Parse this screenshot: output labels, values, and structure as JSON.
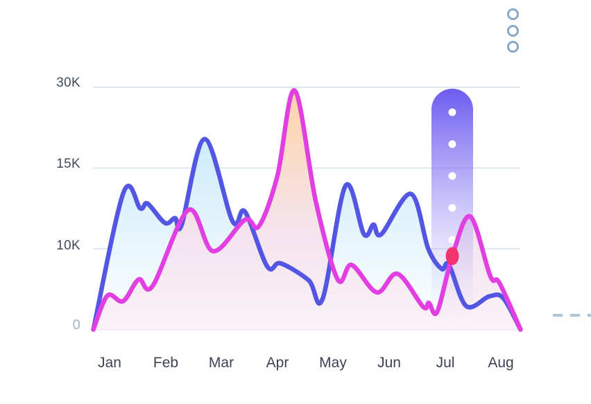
{
  "menu": {
    "icon": "kebab-vertical-rings-icon",
    "dot_count": 3,
    "ring_color": "#8ba8c6"
  },
  "chart_data": {
    "type": "area",
    "title": "",
    "unit": "K",
    "categories": [
      "Jan",
      "Feb",
      "Mar",
      "Apr",
      "May",
      "Jun",
      "Jul",
      "Aug"
    ],
    "y_ticks": [
      {
        "label": "30K",
        "value": 30
      },
      {
        "label": "15K",
        "value": 15
      },
      {
        "label": "10K",
        "value": 10
      },
      {
        "label": "0",
        "value": 0
      }
    ],
    "y_axis_note": "non-linear axis: ticks 0, 10K, 15K, 30K are evenly spaced",
    "grid": true,
    "legend": "none",
    "series": [
      {
        "name": "blue",
        "color": "#5356e2",
        "points": [
          [
            -0.29,
            0
          ],
          [
            0.25,
            13.5
          ],
          [
            0.55,
            12.5
          ],
          [
            0.68,
            12.8
          ],
          [
            0.99,
            11.6
          ],
          [
            1.17,
            11.9
          ],
          [
            1.29,
            11.5
          ],
          [
            1.7,
            20.4
          ],
          [
            2.2,
            11.7
          ],
          [
            2.42,
            12.3
          ],
          [
            2.82,
            7.8
          ],
          [
            3.06,
            8.2
          ],
          [
            3.56,
            6.1
          ],
          [
            3.81,
            3.8
          ],
          [
            4.22,
            13.9
          ],
          [
            4.55,
            10.9
          ],
          [
            4.72,
            11.5
          ],
          [
            4.86,
            10.9
          ],
          [
            5.39,
            13.4
          ],
          [
            5.7,
            10.0
          ],
          [
            5.94,
            7.5
          ],
          [
            6.07,
            8.0
          ],
          [
            6.38,
            2.9
          ],
          [
            6.79,
            4.1
          ],
          [
            7.04,
            3.9
          ],
          [
            7.35,
            0
          ]
        ]
      },
      {
        "name": "magenta",
        "color": "#e13fe1",
        "points": [
          [
            -0.29,
            0
          ],
          [
            -0.04,
            4.2
          ],
          [
            0.24,
            3.5
          ],
          [
            0.52,
            6.2
          ],
          [
            0.77,
            5.4
          ],
          [
            1.41,
            12.4
          ],
          [
            1.85,
            9.7
          ],
          [
            2.42,
            11.8
          ],
          [
            2.67,
            11.4
          ],
          [
            3.0,
            14.5
          ],
          [
            3.31,
            29.4
          ],
          [
            3.69,
            12.9
          ],
          [
            4.08,
            6.2
          ],
          [
            4.33,
            8.0
          ],
          [
            4.78,
            4.6
          ],
          [
            5.15,
            6.9
          ],
          [
            5.61,
            2.8
          ],
          [
            5.71,
            3.3
          ],
          [
            5.86,
            2.2
          ],
          [
            6.13,
            9.1
          ],
          [
            6.45,
            12.0
          ],
          [
            6.81,
            6.6
          ],
          [
            6.97,
            5.8
          ],
          [
            7.35,
            0
          ]
        ]
      }
    ],
    "highlight": {
      "month": "Jul",
      "month_index": 6.13,
      "value": 9.1,
      "marker_color": "#f3356f",
      "pill_color": "#6b59ef",
      "pill_dot_count": 5
    }
  },
  "colors": {
    "background": "#ffffff",
    "gridline": "#dfe7ee",
    "y_label": "#3f4a5a",
    "y_label_zero": "#9db4cb",
    "x_label": "#3b4251",
    "blue_fill_top": "#c0e7fa",
    "pink_fill_top": "#fdd096",
    "dashed_line": "#a9c7d9"
  }
}
